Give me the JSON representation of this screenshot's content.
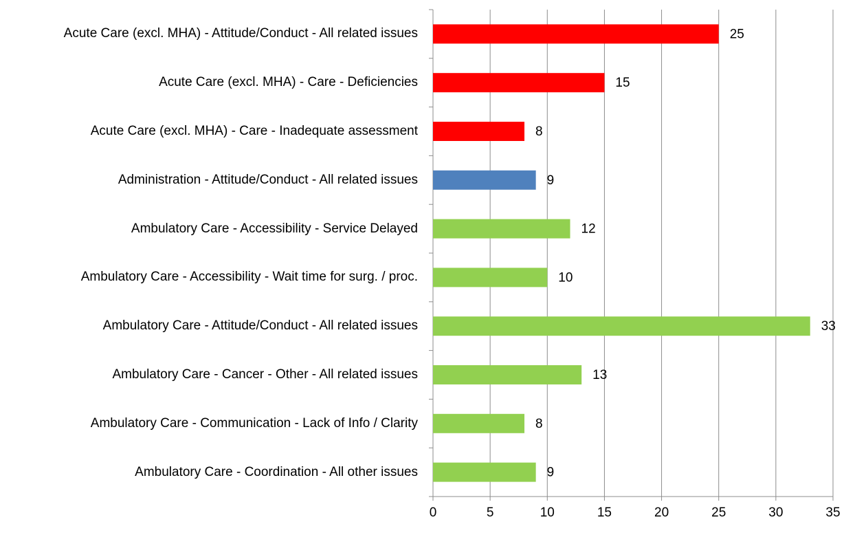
{
  "chart_data": {
    "type": "bar",
    "orientation": "horizontal",
    "categories": [
      "Acute Care (excl. MHA) - Attitude/Conduct - All related issues",
      "Acute Care (excl. MHA) - Care - Deficiencies",
      "Acute Care (excl. MHA) - Care - Inadequate assessment",
      "Administration - Attitude/Conduct - All related issues",
      "Ambulatory Care - Accessibility - Service Delayed",
      "Ambulatory Care - Accessibility - Wait time for surg. / proc.",
      "Ambulatory Care - Attitude/Conduct - All related issues",
      "Ambulatory Care - Cancer - Other - All related issues",
      "Ambulatory Care - Communication - Lack of Info / Clarity",
      "Ambulatory Care - Coordination - All other issues"
    ],
    "values": [
      25,
      15,
      8,
      9,
      12,
      10,
      33,
      13,
      8,
      9
    ],
    "colors": [
      "#ff0000",
      "#ff0000",
      "#ff0000",
      "#4f81bd",
      "#92d050",
      "#92d050",
      "#92d050",
      "#92d050",
      "#92d050",
      "#92d050"
    ],
    "xlim": [
      0,
      35
    ],
    "xticks": [
      0,
      5,
      10,
      15,
      20,
      25,
      30,
      35
    ],
    "grid": true
  }
}
